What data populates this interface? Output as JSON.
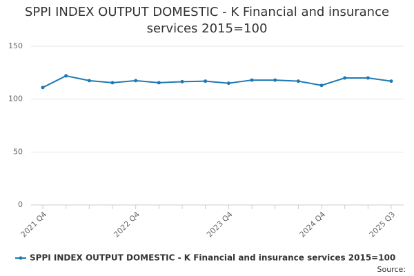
{
  "chart_data": {
    "type": "line",
    "title": "SPPI INDEX OUTPUT DOMESTIC - K Financial and insurance services 2015=100",
    "categories": [
      "2021 Q4",
      null,
      null,
      null,
      "2022 Q4",
      null,
      null,
      null,
      "2023 Q4",
      null,
      null,
      null,
      "2024 Q4",
      null,
      null,
      "2025 Q3"
    ],
    "series": [
      {
        "name": "SPPI INDEX OUTPUT DOMESTIC - K Financial and insurance services 2015=100",
        "color": "#1f78b4",
        "values": [
          111,
          122,
          117.5,
          115.5,
          117.5,
          115.5,
          116.5,
          117,
          115,
          118,
          118,
          117,
          113,
          120,
          120,
          117
        ]
      }
    ],
    "ylim": [
      0,
      150
    ],
    "yticks": [
      0,
      50,
      100,
      150
    ],
    "grid": true,
    "source": "Source:"
  }
}
